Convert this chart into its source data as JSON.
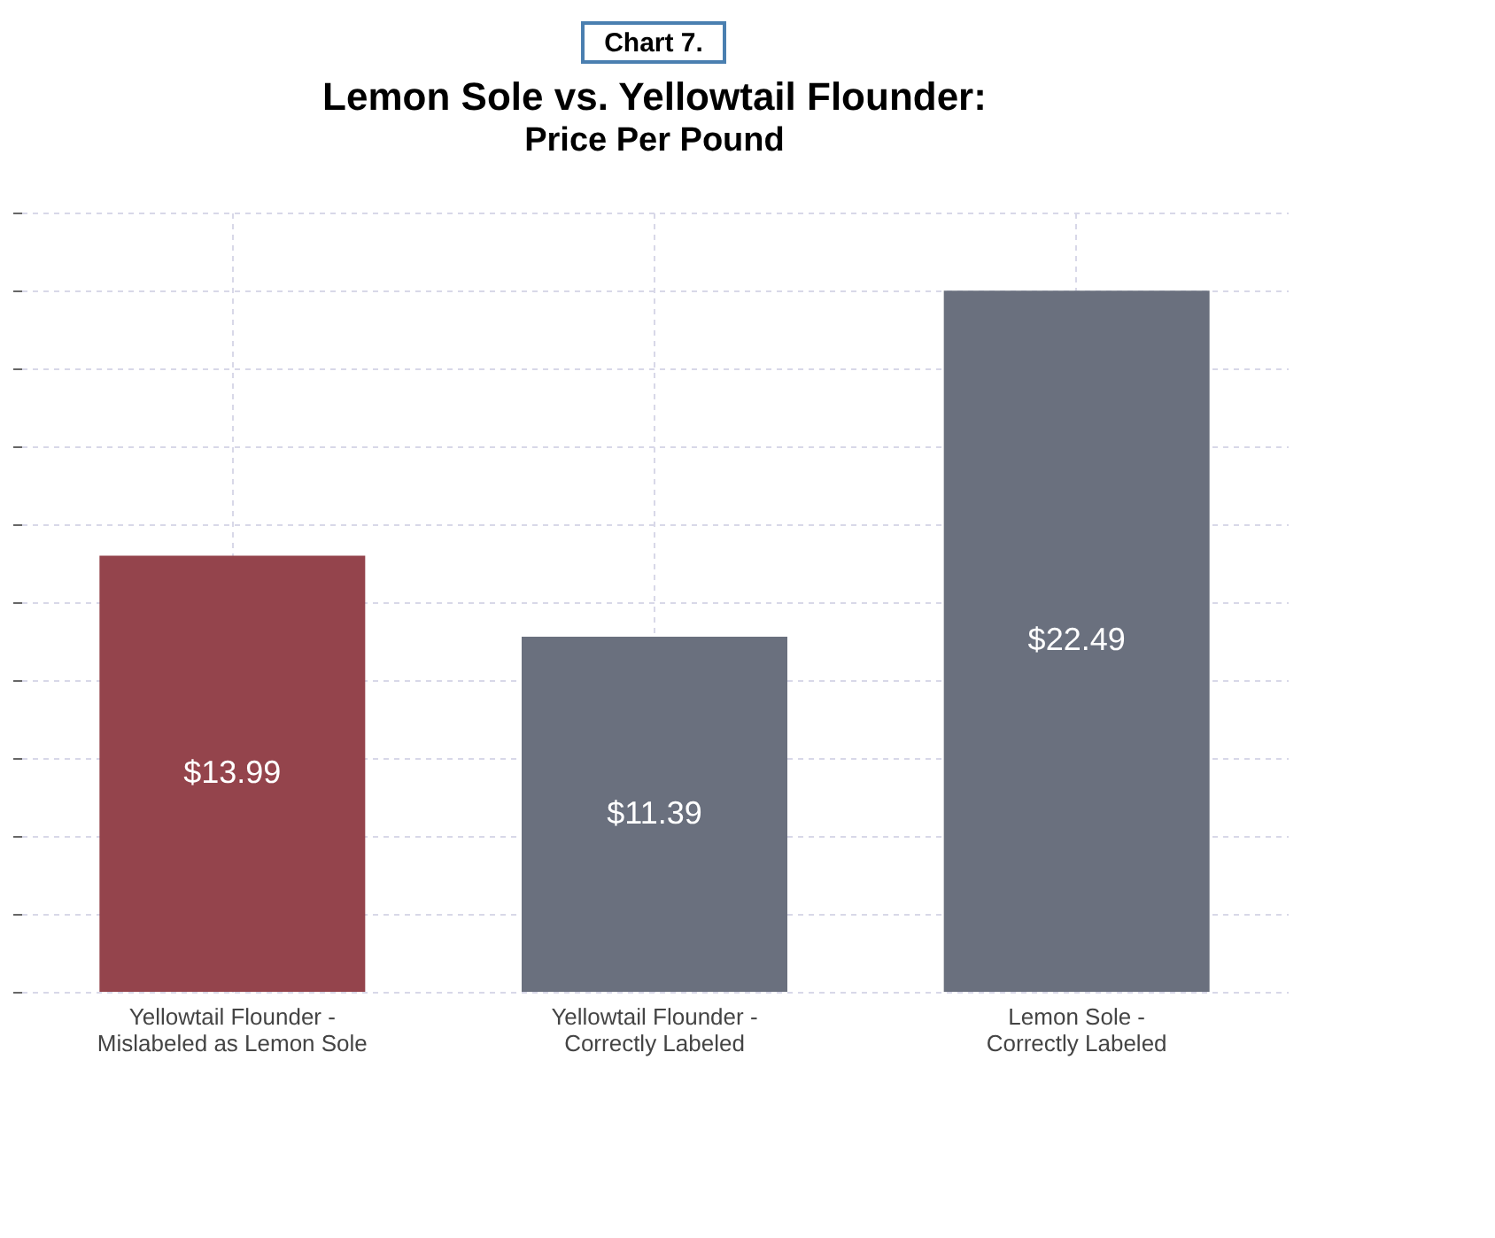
{
  "chart_data": {
    "type": "bar",
    "title": "Lemon Sole vs. Yellowtail Flounder:",
    "subtitle": "Price Per Pound",
    "annotations": [
      "Chart 7."
    ],
    "categories": [
      "Yellowtail Flounder -\nMislabeled as Lemon Sole",
      "Yellowtail Flounder -\nCorrectly Labeled",
      "Lemon Sole -\nCorrectly Labeled"
    ],
    "values": [
      13.99,
      11.39,
      22.49
    ],
    "colors": [
      "#94444c",
      "#6a707e",
      "#6a707e"
    ],
    "value_labels": [
      "$13.99",
      "$11.39",
      "$22.49"
    ],
    "ylim": [
      0,
      25
    ],
    "yticks": [
      {
        "value": 0,
        "label": null
      },
      {
        "value": 2.5,
        "label": null
      },
      {
        "value": 5,
        "label": null
      },
      {
        "value": 7.5,
        "label": null
      },
      {
        "value": 10,
        "label": null
      },
      {
        "value": 12.5,
        "label": null
      },
      {
        "value": 15,
        "label": null
      },
      {
        "value": 17.5,
        "label": null
      },
      {
        "value": 20,
        "label": null
      },
      {
        "value": 22.5,
        "label": null
      },
      {
        "value": 25,
        "label": null
      }
    ],
    "tick_labels": "x",
    "grid": true
  }
}
